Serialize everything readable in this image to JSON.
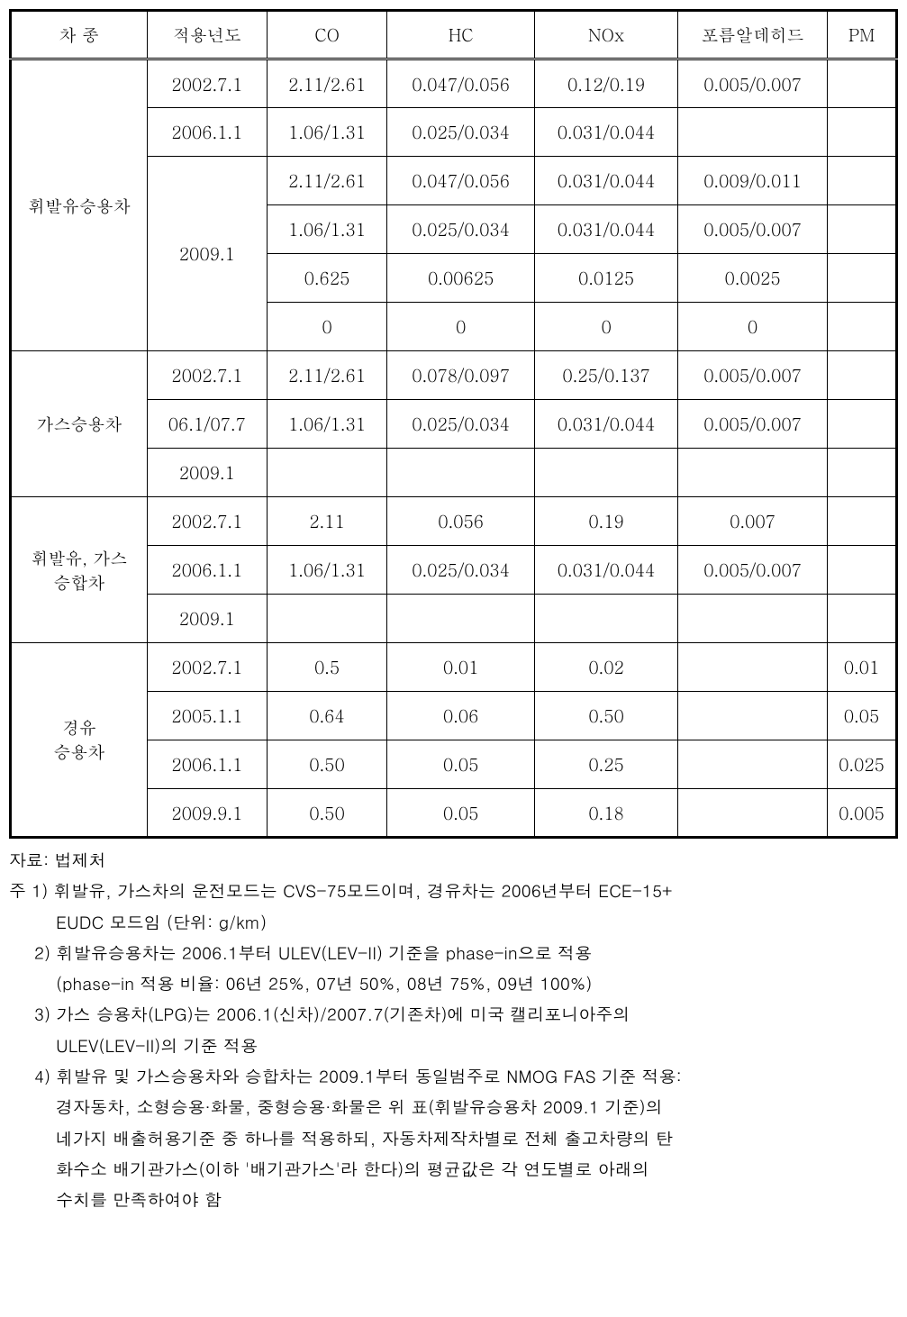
{
  "headers": {
    "col0": "차 종",
    "col1": "적용년도",
    "col2": "CO",
    "col3": "HC",
    "col4": "NOx",
    "col5": "포름알데히드",
    "col6": "PM"
  },
  "groups": [
    {
      "label": "휘발유승용차",
      "subrows": [
        {
          "year": "2002.7.1",
          "co": "2.11/2.61",
          "hc": "0.047/0.056",
          "nox": "0.12/0.19",
          "formal": "0.005/0.007",
          "pm": ""
        },
        {
          "year": "2006.1.1",
          "co": "1.06/1.31",
          "hc": "0.025/0.034",
          "nox": "0.031/0.044",
          "formal": "",
          "pm": ""
        }
      ],
      "yeargroup": {
        "year": "2009.1",
        "rows": [
          {
            "co": "2.11/2.61",
            "hc": "0.047/0.056",
            "nox": "0.031/0.044",
            "formal": "0.009/0.011",
            "pm": ""
          },
          {
            "co": "1.06/1.31",
            "hc": "0.025/0.034",
            "nox": "0.031/0.044",
            "formal": "0.005/0.007",
            "pm": ""
          },
          {
            "co": "0.625",
            "hc": "0.00625",
            "nox": "0.0125",
            "formal": "0.0025",
            "pm": ""
          },
          {
            "co": "0",
            "hc": "0",
            "nox": "0",
            "formal": "0",
            "pm": ""
          }
        ]
      }
    },
    {
      "label": "가스승용차",
      "subrows": [
        {
          "year": "2002.7.1",
          "co": "2.11/2.61",
          "hc": "0.078/0.097",
          "nox": "0.25/0.137",
          "formal": "0.005/0.007",
          "pm": ""
        },
        {
          "year": "06.1/07.7",
          "co": "1.06/1.31",
          "hc": "0.025/0.034",
          "nox": "0.031/0.044",
          "formal": "0.005/0.007",
          "pm": ""
        },
        {
          "year": "2009.1",
          "co": "",
          "hc": "",
          "nox": "",
          "formal": "",
          "pm": ""
        }
      ]
    },
    {
      "label": "휘발유, 가스\n승합차",
      "subrows": [
        {
          "year": "2002.7.1",
          "co": "2.11",
          "hc": "0.056",
          "nox": "0.19",
          "formal": "0.007",
          "pm": ""
        },
        {
          "year": "2006.1.1",
          "co": "1.06/1.31",
          "hc": "0.025/0.034",
          "nox": "0.031/0.044",
          "formal": "0.005/0.007",
          "pm": ""
        },
        {
          "year": "2009.1",
          "co": "",
          "hc": "",
          "nox": "",
          "formal": "",
          "pm": ""
        }
      ]
    },
    {
      "label": "경유\n승용차",
      "subrows": [
        {
          "year": "2002.7.1",
          "co": "0.5",
          "hc": "0.01",
          "nox": "0.02",
          "formal": "",
          "pm": "0.01"
        },
        {
          "year": "2005.1.1",
          "co": "0.64",
          "hc": "0.06",
          "nox": "0.50",
          "formal": "",
          "pm": "0.05"
        },
        {
          "year": "2006.1.1",
          "co": "0.50",
          "hc": "0.05",
          "nox": "0.25",
          "formal": "",
          "pm": "0.025"
        },
        {
          "year": "2009.9.1",
          "co": "0.50",
          "hc": "0.05",
          "nox": "0.18",
          "formal": "",
          "pm": "0.005"
        }
      ]
    }
  ],
  "notes": {
    "source": "자료: 법제처",
    "items": [
      "주 1) 휘발유, 가스차의 운전모드는 CVS-75모드이며, 경유차는 2006년부터 ECE-15+",
      "EUDC 모드임 (단위: g/km)",
      "2) 휘발유승용차는 2006.1부터 ULEV(LEV-II) 기준을 phase-in으로 적용",
      "(phase-in 적용 비율: 06년 25%, 07년 50%, 08년 75%, 09년 100%)",
      "3) 가스 승용차(LPG)는 2006.1(신차)/2007.7(기존차)에 미국 캘리포니아주의",
      "ULEV(LEV-II)의 기준 적용",
      "4) 휘발유 및 가스승용차와 승합차는 2009.1부터 동일범주로 NMOG FAS  기준 적용:",
      "경자동차, 소형승용·화물, 중형승용·화물은 위 표(휘발유승용차 2009.1 기준)의",
      "네가지 배출허용기준 중 하나를 적용하되, 자동차제작차별로 전체 출고차량의 탄",
      "화수소 배기관가스(이하 '배기관가스'라 한다)의   평균값은 각 연도별로 아래의",
      "수치를 만족하여야 함"
    ]
  }
}
